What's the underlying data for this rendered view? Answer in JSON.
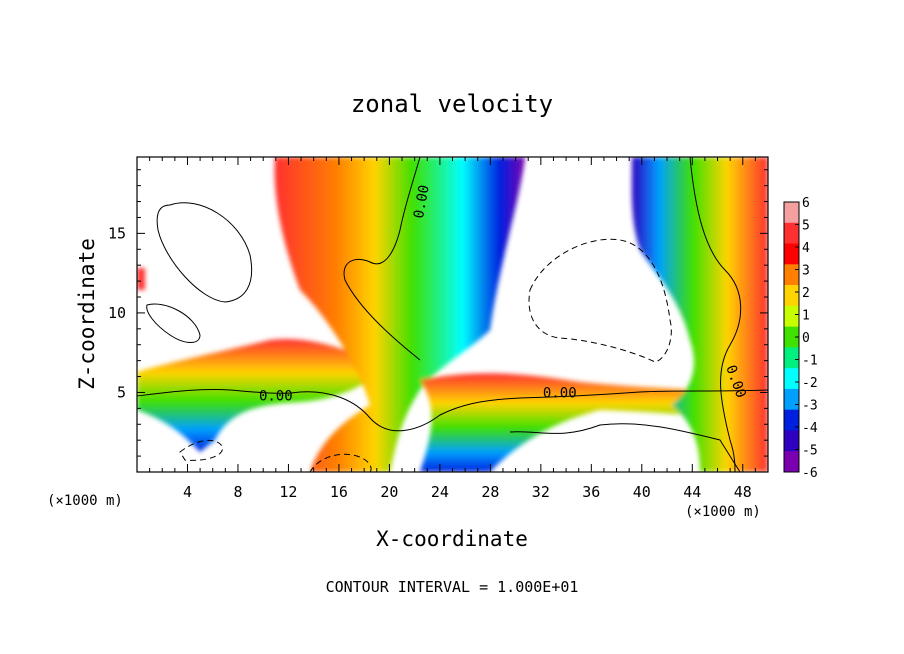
{
  "chart_data": {
    "type": "heatmap",
    "title": "zonal velocity",
    "xlabel": "X-coordinate",
    "ylabel": "Z-coordinate",
    "x_unit_left": "(×1000 m)",
    "x_unit_right": "(×1000 m)",
    "footer": "CONTOUR INTERVAL = 1.000E+01",
    "xlim": [
      0,
      50
    ],
    "ylim": [
      0,
      19.8
    ],
    "x_ticks": [
      4,
      8,
      12,
      16,
      20,
      24,
      28,
      32,
      36,
      40,
      44,
      48
    ],
    "y_ticks": [
      5,
      10,
      15
    ],
    "colorbar": {
      "levels": [
        6,
        5,
        4,
        3,
        2,
        1,
        0,
        -1,
        -2,
        -3,
        -4,
        -5,
        -6
      ],
      "colors": [
        "#f4a0a0",
        "#ff3030",
        "#ff0000",
        "#ff8000",
        "#ffd400",
        "#c8ff00",
        "#40e000",
        "#00f080",
        "#00ffff",
        "#00a0ff",
        "#0020e0",
        "#3000c0",
        "#7a00b0"
      ]
    },
    "contour_labels": [
      {
        "text": "0.00",
        "x": 11,
        "z": 4.8
      },
      {
        "text": "0.00",
        "x": 33.5,
        "z": 5.0
      },
      {
        "text": "0.00",
        "x": 22.5,
        "z": 17.0
      },
      {
        "text": "0.00",
        "x": 47.5,
        "z": 5.7
      }
    ]
  }
}
